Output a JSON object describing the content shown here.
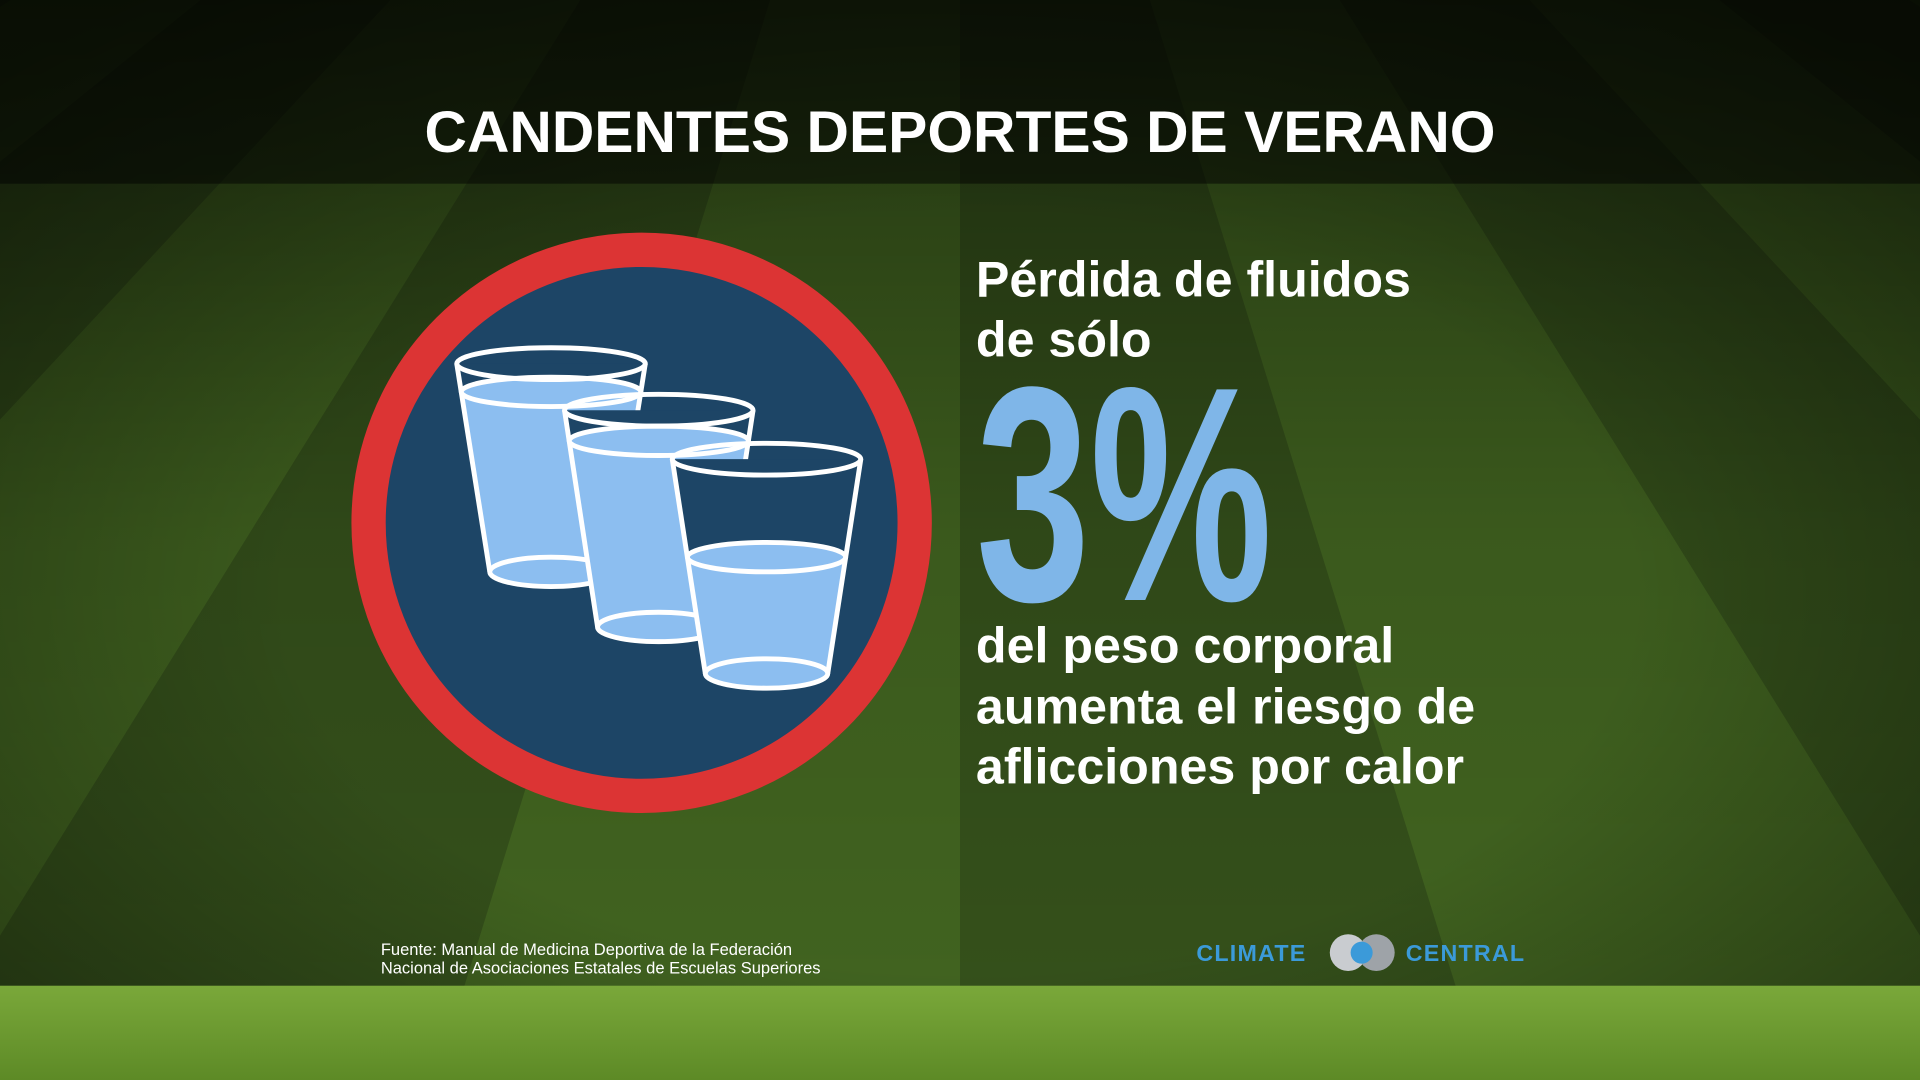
{
  "header": {
    "title": "CANDENTES DEPORTES DE VERANO"
  },
  "main": {
    "intro": [
      "Pérdida de fluidos",
      "de sólo"
    ],
    "figure": "3%",
    "body": [
      "del peso corporal",
      "aumenta el riesgo de",
      "aflicciones por calor"
    ]
  },
  "footer": {
    "source": [
      "Fuente: Manual de Medicina Deportiva de la Federación",
      "Nacional de Asociaciones Estatales de Escuelas Superiores"
    ],
    "logo": [
      "CLIMATE",
      "CENTRAL"
    ]
  }
}
